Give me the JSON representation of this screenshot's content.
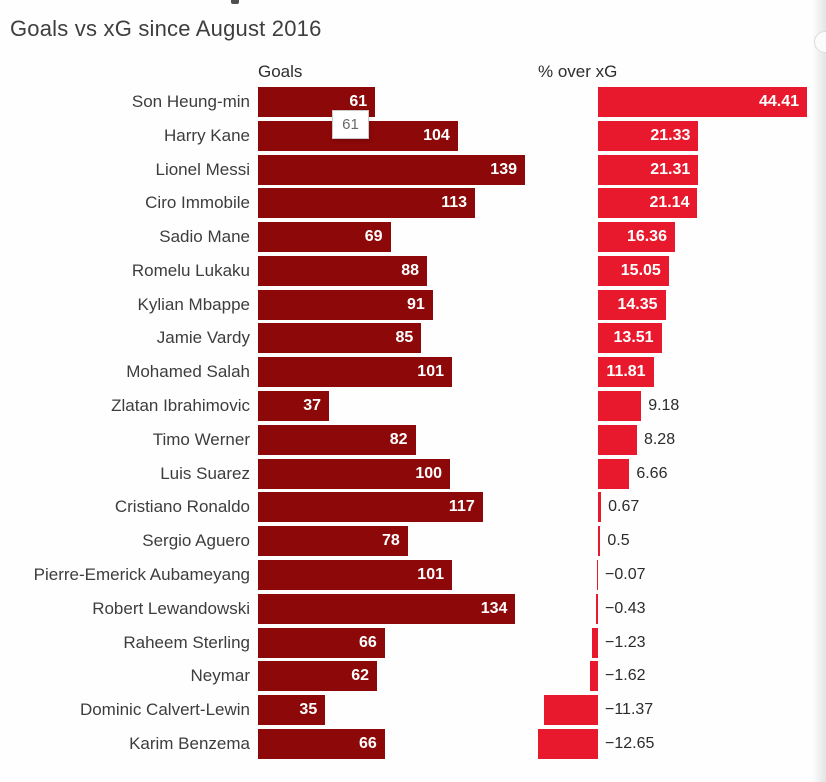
{
  "title": "Goals vs xG since August 2016",
  "columns": {
    "goals": "Goals",
    "pct": "% over xG"
  },
  "tooltip": {
    "value": "61"
  },
  "colors": {
    "goals_bar": "#8d0808",
    "pct_bar": "#e8192c",
    "bar_value_text": "#ffffff",
    "outside_value_text": "#2b2b2b",
    "title_text": "#3e3e3e",
    "player_name_text": "#3d3d3d"
  },
  "chart_data": {
    "type": "bar",
    "orientation": "horizontal",
    "title": "Goals vs xG since August 2016",
    "panels": [
      "Goals",
      "% over xG"
    ],
    "grid": false,
    "legend": "none",
    "value_labels": "on-bars",
    "goals_axis": [
      0,
      139
    ],
    "pct_axis": [
      -12.65,
      44.41
    ],
    "categories": [
      "Son Heung-min",
      "Harry Kane",
      "Lionel Messi",
      "Ciro Immobile",
      "Sadio Mane",
      "Romelu Lukaku",
      "Kylian Mbappe",
      "Jamie Vardy",
      "Mohamed Salah",
      "Zlatan Ibrahimovic",
      "Timo Werner",
      "Luis Suarez",
      "Cristiano Ronaldo",
      "Sergio Aguero",
      "Pierre-Emerick Aubameyang",
      "Robert Lewandowski",
      "Raheem Sterling",
      "Neymar",
      "Dominic Calvert-Lewin",
      "Karim Benzema"
    ],
    "series": [
      {
        "name": "Goals",
        "values": [
          61,
          104,
          139,
          113,
          69,
          88,
          91,
          85,
          101,
          37,
          82,
          100,
          117,
          78,
          101,
          134,
          66,
          62,
          35,
          66
        ],
        "labels": [
          "61",
          "104",
          "139",
          "113",
          "69",
          "88",
          "91",
          "85",
          "101",
          "37",
          "82",
          "100",
          "117",
          "78",
          "101",
          "134",
          "66",
          "62",
          "35",
          "66"
        ]
      },
      {
        "name": "% over xG",
        "values": [
          44.41,
          21.33,
          21.31,
          21.14,
          16.36,
          15.05,
          14.35,
          13.51,
          11.81,
          9.18,
          8.28,
          6.66,
          0.67,
          0.5,
          -0.07,
          -0.43,
          -1.23,
          -1.62,
          -11.37,
          -12.65
        ],
        "labels": [
          "44.41",
          "21.33",
          "21.31",
          "21.14",
          "16.36",
          "15.05",
          "14.35",
          "13.51",
          "11.81",
          "9.18",
          "8.28",
          "6.66",
          "0.67",
          "0.5",
          "−0.07",
          "−0.43",
          "−1.23",
          "−1.62",
          "−11.37",
          "−12.65"
        ]
      }
    ]
  }
}
